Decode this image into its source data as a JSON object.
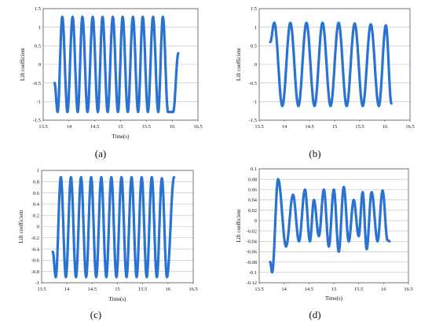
{
  "chart_data": [
    {
      "type": "line",
      "caption": "(a)",
      "xlabel": "Time(s)",
      "ylabel": "Lift coefficient",
      "xlim": [
        13.5,
        16.5
      ],
      "ylim": [
        -1.5,
        1.5
      ],
      "xticks": [
        "13.5",
        "14",
        "14.5",
        "15",
        "15.5",
        "16",
        "16.5"
      ],
      "yticks": [
        "1.5",
        "1",
        "0.5",
        "0",
        "-0.5",
        "-1",
        "-1.5"
      ],
      "grid": "horizontal",
      "color": "#2b73d1",
      "series": [
        {
          "x": [
            13.72,
            13.78,
            13.87,
            13.97,
            14.07,
            14.17,
            14.26,
            14.36,
            14.46,
            14.56,
            14.65,
            14.75,
            14.85,
            14.95,
            15.04,
            15.14,
            15.24,
            15.34,
            15.43,
            15.53,
            15.63,
            15.73,
            15.82,
            15.92,
            16.02,
            16.12
          ],
          "y": [
            -0.5,
            -1.28,
            1.28,
            -1.28,
            1.28,
            -1.28,
            1.28,
            -1.28,
            1.28,
            -1.28,
            1.28,
            -1.28,
            1.28,
            -1.28,
            1.28,
            -1.28,
            1.28,
            -1.28,
            1.28,
            -1.28,
            1.28,
            -1.28,
            1.28,
            -1.28,
            -1.28,
            0.3
          ]
        }
      ]
    },
    {
      "type": "line",
      "caption": "(b)",
      "xlabel": "",
      "ylabel": "Lift coefficient",
      "xlim": [
        13.5,
        16.5
      ],
      "ylim": [
        -1.5,
        1.5
      ],
      "xticks": [
        "13.5",
        "14",
        "14.5",
        "15",
        "15.5",
        "16",
        "16.5"
      ],
      "yticks": [
        "1.5",
        "1",
        "0.5",
        "0",
        "-0.5",
        "-1",
        "-1.5"
      ],
      "grid": "horizontal",
      "color": "#2b73d1",
      "series": [
        {
          "x": [
            13.72,
            13.8,
            13.96,
            14.12,
            14.28,
            14.44,
            14.6,
            14.76,
            14.92,
            15.08,
            15.24,
            15.4,
            15.56,
            15.72,
            15.88,
            16.02,
            16.13
          ],
          "y": [
            0.6,
            1.12,
            -1.12,
            1.12,
            -1.12,
            1.12,
            -1.12,
            1.12,
            -1.12,
            1.12,
            -1.12,
            1.1,
            -1.12,
            1.08,
            -1.12,
            1.05,
            -1.05
          ]
        }
      ]
    },
    {
      "type": "line",
      "caption": "(c)",
      "xlabel": "Time(s)",
      "ylabel": "Lift coefficient",
      "xlim": [
        13.5,
        16.5
      ],
      "ylim": [
        -1,
        1
      ],
      "xticks": [
        "13.5",
        "14",
        "14.5",
        "15",
        "15.5",
        "16",
        "16.5"
      ],
      "yticks": [
        "1",
        "0.8",
        "0.6",
        "0.4",
        "0.2",
        "0",
        "-0.2",
        "-0.4",
        "-0.6",
        "-0.8",
        "-1"
      ],
      "grid": "horizontal",
      "color": "#2b73d1",
      "series": [
        {
          "x": [
            13.72,
            13.78,
            13.88,
            13.98,
            14.08,
            14.18,
            14.28,
            14.38,
            14.48,
            14.58,
            14.68,
            14.78,
            14.88,
            14.98,
            15.08,
            15.18,
            15.28,
            15.38,
            15.48,
            15.58,
            15.68,
            15.78,
            15.88,
            15.98,
            16.12
          ],
          "y": [
            -0.45,
            -0.9,
            0.88,
            -0.9,
            0.88,
            -0.9,
            0.88,
            -0.9,
            0.88,
            -0.9,
            0.88,
            -0.9,
            0.88,
            -0.9,
            0.88,
            -0.9,
            0.88,
            -0.9,
            0.88,
            -0.9,
            0.88,
            -0.9,
            0.86,
            -0.9,
            0.88
          ]
        }
      ]
    },
    {
      "type": "line",
      "caption": "(d)",
      "xlabel": "Time(s)",
      "ylabel": "Lift coefficient",
      "xlim": [
        13.5,
        16.5
      ],
      "ylim": [
        -0.12,
        0.1
      ],
      "xticks": [
        "13.5",
        "14",
        "14.5",
        "15",
        "15.5",
        "16",
        "16.5"
      ],
      "yticks": [
        "0.1",
        "0.08",
        "0.06",
        "0.04",
        "0.02",
        "0",
        "-0.02",
        "-0.04",
        "-0.06",
        "-0.08",
        "-0.1",
        "-0.12"
      ],
      "grid": "horizontal",
      "color": "#2b73d1",
      "series": [
        {
          "x": [
            13.72,
            13.76,
            13.88,
            14.04,
            14.18,
            14.3,
            14.42,
            14.52,
            14.6,
            14.7,
            14.8,
            14.9,
            15.0,
            15.1,
            15.2,
            15.3,
            15.4,
            15.5,
            15.58,
            15.66,
            15.76,
            15.88,
            15.98,
            16.08,
            16.12
          ],
          "y": [
            -0.08,
            -0.1,
            0.08,
            -0.05,
            0.05,
            -0.04,
            0.06,
            -0.04,
            0.04,
            -0.03,
            0.06,
            -0.05,
            0.06,
            -0.06,
            0.065,
            -0.04,
            0.04,
            -0.03,
            0.055,
            -0.055,
            0.055,
            -0.04,
            0.058,
            -0.038,
            -0.04
          ]
        }
      ]
    }
  ]
}
